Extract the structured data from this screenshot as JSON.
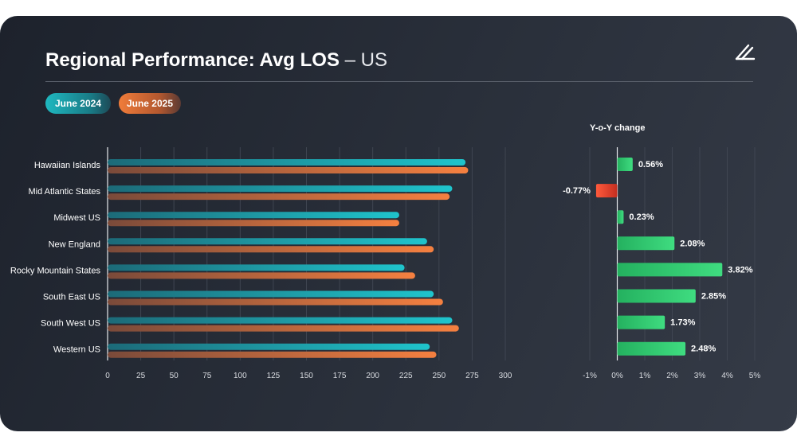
{
  "header": {
    "title_bold": "Regional Performance: Avg LOS",
    "title_rest": " – US"
  },
  "legend": {
    "series_a": "June 2024",
    "series_b": "June 2025"
  },
  "yoy_title": "Y-o-Y change",
  "colors": {
    "series_a": "#1fb8c0",
    "series_b": "#f07c3a",
    "positive": "#2ecc71",
    "negative": "#e74c3c"
  },
  "chart_data": [
    {
      "type": "bar",
      "orientation": "horizontal",
      "categories": [
        "Hawaiian Islands",
        "Mid Atlantic States",
        "Midwest US",
        "New England",
        "Rocky Mountain States",
        "South East US",
        "South West US",
        "Western US"
      ],
      "series": [
        {
          "name": "June 2024",
          "values": [
            270,
            260,
            220,
            241,
            224,
            246,
            260,
            243
          ]
        },
        {
          "name": "June 2025",
          "values": [
            272,
            258,
            220,
            246,
            232,
            253,
            265,
            248
          ]
        }
      ],
      "xlim": [
        0,
        300
      ],
      "xticks": [
        "0",
        "25",
        "50",
        "75",
        "100",
        "125",
        "150",
        "175",
        "200",
        "225",
        "250",
        "275",
        "300"
      ],
      "grid": true
    },
    {
      "type": "bar",
      "orientation": "horizontal",
      "title": "Y-o-Y change",
      "categories": [
        "Hawaiian Islands",
        "Mid Atlantic States",
        "Midwest US",
        "New England",
        "Rocky Mountain States",
        "South East US",
        "South West US",
        "Western US"
      ],
      "values": [
        0.56,
        -0.77,
        0.23,
        2.08,
        3.82,
        2.85,
        1.73,
        2.48
      ],
      "labels": [
        "0.56%",
        "-0.77%",
        "0.23%",
        "2.08%",
        "3.82%",
        "2.85%",
        "1.73%",
        "2.48%"
      ],
      "xlim": [
        -1,
        5
      ],
      "xticks": [
        "-1%",
        "0%",
        "1%",
        "2%",
        "3%",
        "4%",
        "5%"
      ],
      "grid": true
    }
  ]
}
